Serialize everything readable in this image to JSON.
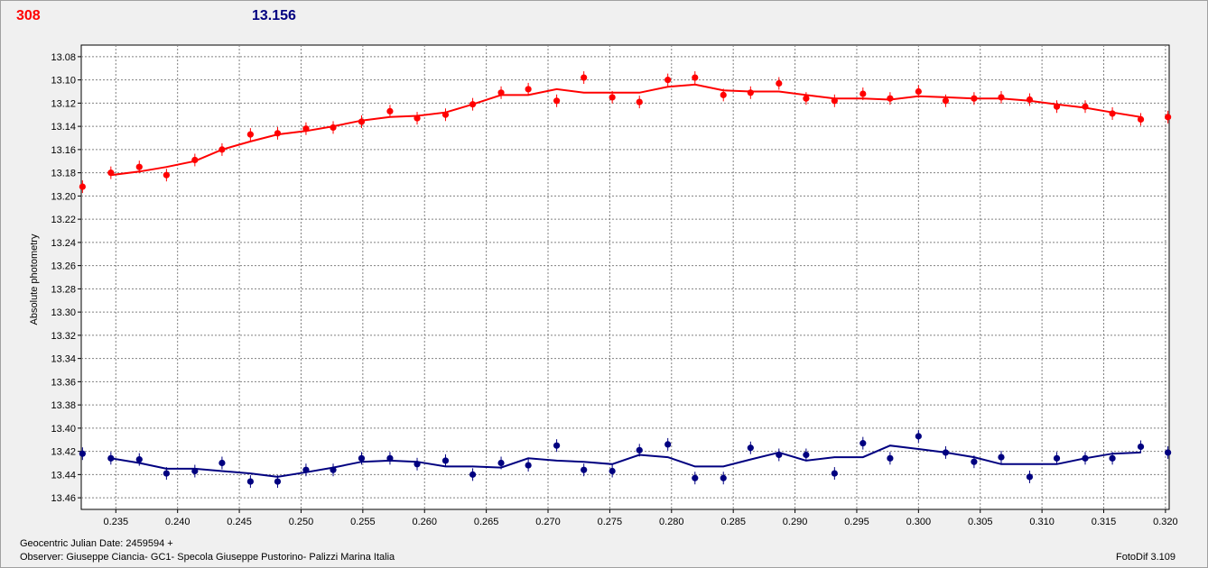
{
  "header": {
    "left_value": "308",
    "right_value": "13.156"
  },
  "footer": {
    "julian_date": "Geocentric Julian Date: 2459594 +",
    "observer": "Observer: Giuseppe Ciancia- GC1- Specola Giuseppe Pustorino- Palizzi Marina Italia",
    "software": "FotoDif 3.109"
  },
  "colors": {
    "series_a": "#ff0000",
    "series_b": "#000080",
    "grid": "#808080",
    "plot_bg": "#ffffff"
  },
  "chart_data": {
    "type": "scatter",
    "ylabel": "Absolute photometry",
    "xlim": [
      0.2322,
      0.3203
    ],
    "ylim": [
      13.07,
      13.47
    ],
    "y_inverted": true,
    "grid": true,
    "x_ticks": [
      0.235,
      0.24,
      0.245,
      0.25,
      0.255,
      0.26,
      0.265,
      0.27,
      0.275,
      0.28,
      0.285,
      0.29,
      0.295,
      0.3,
      0.305,
      0.31,
      0.315,
      0.32
    ],
    "x_tick_labels": [
      "0.235",
      "0.240",
      "0.245",
      "0.250",
      "0.255",
      "0.260",
      "0.265",
      "0.270",
      "0.275",
      "0.280",
      "0.285",
      "0.290",
      "0.295",
      "0.300",
      "0.305",
      "0.310",
      "0.315",
      "0.320"
    ],
    "y_ticks": [
      13.08,
      13.1,
      13.12,
      13.14,
      13.16,
      13.18,
      13.2,
      13.22,
      13.24,
      13.26,
      13.28,
      13.3,
      13.32,
      13.34,
      13.36,
      13.38,
      13.4,
      13.42,
      13.44,
      13.46
    ],
    "y_tick_labels": [
      "13.08",
      "13.10",
      "13.12",
      "13.14",
      "13.16",
      "13.18",
      "13.20",
      "13.22",
      "13.24",
      "13.26",
      "13.28",
      "13.30",
      "13.32",
      "13.34",
      "13.36",
      "13.38",
      "13.40",
      "13.42",
      "13.44",
      "13.46"
    ],
    "series": [
      {
        "color": "#ff0000",
        "x": [
          0.2323,
          0.2346,
          0.2369,
          0.2391,
          0.2414,
          0.2436,
          0.2459,
          0.2481,
          0.2504,
          0.2526,
          0.2549,
          0.2572,
          0.2594,
          0.2617,
          0.2639,
          0.2662,
          0.2684,
          0.2707,
          0.2729,
          0.2752,
          0.2774,
          0.2797,
          0.2819,
          0.2842,
          0.2864,
          0.2887,
          0.2909,
          0.2932,
          0.2955,
          0.2977,
          0.3,
          0.3022,
          0.3045,
          0.3067,
          0.309,
          0.3112,
          0.3135,
          0.3157,
          0.318,
          0.3202
        ],
        "y": [
          13.192,
          13.18,
          13.175,
          13.182,
          13.169,
          13.16,
          13.147,
          13.146,
          13.142,
          13.141,
          13.136,
          13.127,
          13.133,
          13.13,
          13.121,
          13.111,
          13.108,
          13.118,
          13.098,
          13.115,
          13.119,
          13.1,
          13.098,
          13.113,
          13.111,
          13.103,
          13.116,
          13.118,
          13.112,
          13.116,
          13.11,
          13.118,
          13.116,
          13.115,
          13.117,
          13.123,
          13.123,
          13.129,
          13.134,
          13.132
        ],
        "trend_x": [
          0.2346,
          0.2369,
          0.2391,
          0.2414,
          0.2436,
          0.2459,
          0.2481,
          0.2504,
          0.2526,
          0.2549,
          0.2572,
          0.2594,
          0.2617,
          0.2639,
          0.2662,
          0.2684,
          0.2707,
          0.2729,
          0.2752,
          0.2774,
          0.2797,
          0.2819,
          0.2842,
          0.2864,
          0.2887,
          0.2909,
          0.2932,
          0.2955,
          0.2977,
          0.3,
          0.3022,
          0.3045,
          0.3067,
          0.309,
          0.3112,
          0.3135,
          0.3157,
          0.318
        ],
        "trend_y": [
          13.182,
          13.179,
          13.175,
          13.17,
          13.16,
          13.153,
          13.147,
          13.144,
          13.14,
          13.135,
          13.132,
          13.131,
          13.128,
          13.121,
          13.113,
          13.113,
          13.108,
          13.111,
          13.111,
          13.111,
          13.106,
          13.104,
          13.109,
          13.11,
          13.11,
          13.113,
          13.116,
          13.116,
          13.117,
          13.114,
          13.115,
          13.116,
          13.116,
          13.118,
          13.121,
          13.124,
          13.128,
          13.132
        ]
      },
      {
        "color": "#000080",
        "x": [
          0.2323,
          0.2346,
          0.2369,
          0.2391,
          0.2414,
          0.2436,
          0.2459,
          0.2481,
          0.2504,
          0.2526,
          0.2549,
          0.2572,
          0.2594,
          0.2617,
          0.2639,
          0.2662,
          0.2684,
          0.2707,
          0.2729,
          0.2752,
          0.2774,
          0.2797,
          0.2819,
          0.2842,
          0.2864,
          0.2887,
          0.2909,
          0.2932,
          0.2955,
          0.2977,
          0.3,
          0.3022,
          0.3045,
          0.3067,
          0.309,
          0.3112,
          0.3135,
          0.3157,
          0.318,
          0.3202
        ],
        "y": [
          13.422,
          13.426,
          13.427,
          13.439,
          13.437,
          13.43,
          13.446,
          13.446,
          13.436,
          13.436,
          13.426,
          13.426,
          13.431,
          13.428,
          13.44,
          13.43,
          13.432,
          13.415,
          13.436,
          13.437,
          13.419,
          13.414,
          13.443,
          13.443,
          13.417,
          13.423,
          13.423,
          13.439,
          13.413,
          13.426,
          13.407,
          13.421,
          13.429,
          13.425,
          13.442,
          13.426,
          13.426,
          13.426,
          13.416,
          13.421
        ],
        "trend_x": [
          0.2346,
          0.2369,
          0.2391,
          0.2414,
          0.2436,
          0.2459,
          0.2481,
          0.2504,
          0.2526,
          0.2549,
          0.2572,
          0.2594,
          0.2617,
          0.2639,
          0.2662,
          0.2684,
          0.2707,
          0.2729,
          0.2752,
          0.2774,
          0.2797,
          0.2819,
          0.2842,
          0.2864,
          0.2887,
          0.2909,
          0.2932,
          0.2955,
          0.2977,
          0.3,
          0.3022,
          0.3045,
          0.3067,
          0.309,
          0.3112,
          0.3135,
          0.3157,
          0.318
        ],
        "trend_y": [
          13.426,
          13.43,
          13.435,
          13.435,
          13.437,
          13.439,
          13.442,
          13.438,
          13.434,
          13.429,
          13.428,
          13.429,
          13.433,
          13.433,
          13.434,
          13.426,
          13.428,
          13.429,
          13.431,
          13.423,
          13.425,
          13.433,
          13.433,
          13.427,
          13.421,
          13.428,
          13.425,
          13.425,
          13.415,
          13.418,
          13.421,
          13.425,
          13.431,
          13.431,
          13.431,
          13.426,
          13.422,
          13.421
        ]
      }
    ]
  }
}
